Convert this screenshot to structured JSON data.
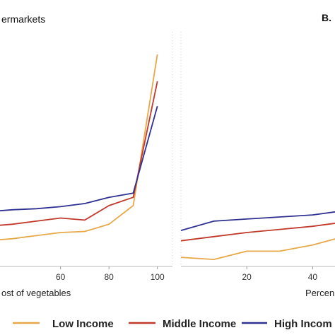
{
  "chart_data": [
    {
      "type": "line",
      "title": "ermarkets",
      "xlabel": "ost of vegetables",
      "x_ticks": [
        60,
        80,
        100
      ],
      "x_range": [
        35,
        103
      ],
      "y_range": [
        0,
        100
      ],
      "series": [
        {
          "name": "Low Income",
          "color": "#E8A849",
          "x": [
            35,
            40,
            50,
            60,
            70,
            80,
            90,
            100
          ],
          "y": [
            10.5,
            11,
            12.5,
            14,
            14.5,
            18,
            27,
            100
          ]
        },
        {
          "name": "Middle Income",
          "color": "#C0392B",
          "x": [
            35,
            40,
            50,
            60,
            70,
            80,
            90,
            100
          ],
          "y": [
            17.5,
            18,
            19.5,
            21,
            20,
            27,
            31,
            87
          ]
        },
        {
          "name": "High Income",
          "color": "#2E3192",
          "x": [
            35,
            40,
            50,
            60,
            70,
            80,
            90,
            100
          ],
          "y": [
            24.5,
            25,
            25.5,
            26.5,
            28,
            31,
            33,
            75
          ]
        }
      ]
    },
    {
      "type": "line",
      "panel_label": "B.",
      "xlabel": "Percen",
      "x_ticks": [
        20,
        40
      ],
      "x_range": [
        0,
        47
      ],
      "y_range": [
        0,
        100
      ],
      "series": [
        {
          "name": "Low Income",
          "color": "#E8A849",
          "x": [
            0,
            10,
            20,
            30,
            40,
            47
          ],
          "y": [
            2,
            1,
            5,
            5,
            8,
            11
          ]
        },
        {
          "name": "Middle Income",
          "color": "#C0392B",
          "x": [
            0,
            10,
            20,
            30,
            40,
            47
          ],
          "y": [
            10,
            12,
            14,
            15.5,
            17,
            18.5
          ]
        },
        {
          "name": "High Income",
          "color": "#2E3192",
          "x": [
            0,
            10,
            20,
            30,
            40,
            47
          ],
          "y": [
            15,
            19.5,
            20.5,
            21.5,
            22.5,
            24
          ]
        }
      ]
    }
  ],
  "legend": {
    "items": [
      {
        "label": "Low Income",
        "color": "#E8A849"
      },
      {
        "label": "Middle Income",
        "color": "#C0392B"
      },
      {
        "label": "High Incom",
        "color": "#2E3192"
      }
    ]
  }
}
